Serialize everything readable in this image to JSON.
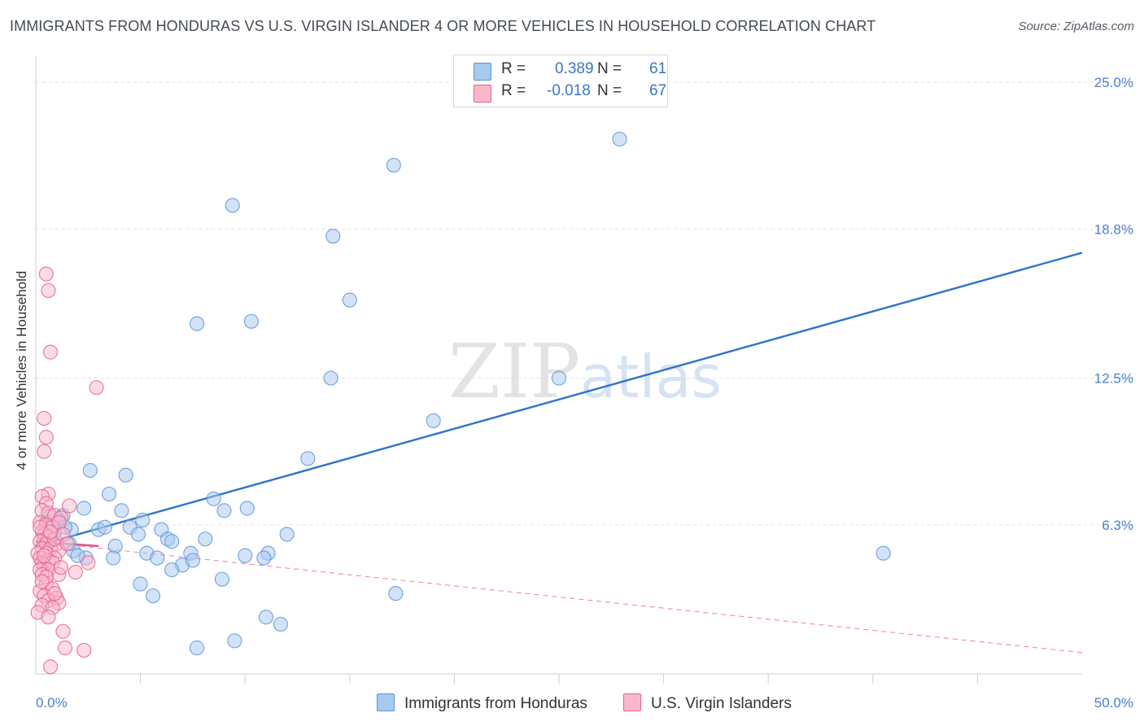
{
  "title": "IMMIGRANTS FROM HONDURAS VS U.S. VIRGIN ISLANDER 4 OR MORE VEHICLES IN HOUSEHOLD CORRELATION CHART",
  "source": "Source: ZipAtlas.com",
  "watermark": {
    "zip": "ZIP",
    "atlas": "atlas"
  },
  "legend": {
    "r_label": "R =",
    "n_label": "N =",
    "rows": [
      {
        "r": "0.389",
        "n": "61",
        "color": "#a8c8f0"
      },
      {
        "r": "-0.018",
        "n": "67",
        "color": "#f8b8cc"
      }
    ]
  },
  "chart_data": {
    "type": "scatter",
    "ylabel": "4 or more Vehicles in Household",
    "xlim": [
      0,
      50
    ],
    "ylim": [
      0,
      25.9
    ],
    "x_tick_labels": [
      {
        "v": 0,
        "label": "0.0%"
      },
      {
        "v": 50,
        "label": "50.0%"
      }
    ],
    "y_tick_labels": [
      {
        "v": 6.3,
        "label": "6.3%"
      },
      {
        "v": 12.5,
        "label": "12.5%"
      },
      {
        "v": 18.8,
        "label": "18.8%"
      },
      {
        "v": 25.0,
        "label": "25.0%"
      }
    ],
    "series": [
      {
        "name": "Immigrants from Honduras",
        "color": "#5b93d8",
        "fill": "#a8c8f0",
        "trend": {
          "x": [
            0.0,
            50.0
          ],
          "y": [
            5.4,
            17.8
          ],
          "style": "solid"
        },
        "points": [
          [
            27.9,
            22.6
          ],
          [
            17.1,
            21.5
          ],
          [
            9.4,
            19.8
          ],
          [
            14.2,
            18.5
          ],
          [
            15.0,
            15.8
          ],
          [
            7.7,
            14.8
          ],
          [
            10.3,
            14.9
          ],
          [
            14.1,
            12.5
          ],
          [
            25.0,
            12.5
          ],
          [
            19.0,
            10.7
          ],
          [
            13.0,
            9.1
          ],
          [
            2.6,
            8.6
          ],
          [
            4.3,
            8.4
          ],
          [
            3.5,
            7.6
          ],
          [
            8.5,
            7.4
          ],
          [
            10.1,
            7.0
          ],
          [
            4.1,
            6.9
          ],
          [
            9.0,
            6.9
          ],
          [
            2.3,
            7.0
          ],
          [
            1.3,
            6.7
          ],
          [
            0.5,
            6.4
          ],
          [
            1.1,
            6.5
          ],
          [
            1.7,
            6.1
          ],
          [
            3.0,
            6.1
          ],
          [
            3.3,
            6.2
          ],
          [
            4.5,
            6.2
          ],
          [
            5.1,
            6.5
          ],
          [
            4.9,
            5.9
          ],
          [
            6.0,
            6.1
          ],
          [
            6.3,
            5.7
          ],
          [
            6.5,
            5.6
          ],
          [
            8.1,
            5.7
          ],
          [
            12.0,
            5.9
          ],
          [
            1.6,
            5.5
          ],
          [
            3.8,
            5.4
          ],
          [
            1.8,
            5.2
          ],
          [
            5.3,
            5.1
          ],
          [
            7.4,
            5.1
          ],
          [
            10.0,
            5.0
          ],
          [
            11.1,
            5.1
          ],
          [
            2.4,
            4.9
          ],
          [
            3.7,
            4.9
          ],
          [
            5.8,
            4.9
          ],
          [
            7.0,
            4.6
          ],
          [
            7.5,
            4.8
          ],
          [
            10.9,
            4.9
          ],
          [
            6.5,
            4.4
          ],
          [
            40.5,
            5.1
          ],
          [
            5.0,
            3.8
          ],
          [
            8.9,
            4.0
          ],
          [
            5.6,
            3.3
          ],
          [
            17.2,
            3.4
          ],
          [
            11.0,
            2.4
          ],
          [
            11.7,
            2.1
          ],
          [
            9.5,
            1.4
          ],
          [
            7.7,
            1.1
          ],
          [
            0.4,
            5.7
          ],
          [
            0.9,
            6.0
          ],
          [
            1.4,
            6.2
          ],
          [
            0.7,
            6.7
          ],
          [
            2.0,
            5.0
          ]
        ]
      },
      {
        "name": "U.S. Virgin Islanders",
        "color": "#e8608c",
        "fill": "#f8b8cc",
        "trend": {
          "x": [
            0.0,
            3.0
          ],
          "y": [
            5.6,
            5.4
          ],
          "style": "solid"
        },
        "trend_extended": {
          "x": [
            0.0,
            50.0
          ],
          "y": [
            5.6,
            0.9
          ],
          "style": "dashed"
        },
        "points": [
          [
            0.5,
            16.9
          ],
          [
            0.6,
            16.2
          ],
          [
            0.7,
            13.6
          ],
          [
            2.9,
            12.1
          ],
          [
            0.4,
            10.8
          ],
          [
            0.5,
            10.0
          ],
          [
            0.4,
            9.4
          ],
          [
            0.6,
            7.6
          ],
          [
            0.3,
            7.5
          ],
          [
            0.5,
            7.2
          ],
          [
            1.6,
            7.1
          ],
          [
            0.3,
            6.9
          ],
          [
            0.6,
            6.8
          ],
          [
            0.9,
            6.7
          ],
          [
            1.2,
            6.6
          ],
          [
            0.2,
            6.4
          ],
          [
            0.5,
            6.3
          ],
          [
            0.8,
            6.2
          ],
          [
            1.1,
            6.4
          ],
          [
            0.3,
            6.0
          ],
          [
            0.4,
            5.9
          ],
          [
            0.6,
            5.8
          ],
          [
            0.2,
            5.6
          ],
          [
            0.5,
            5.5
          ],
          [
            1.0,
            5.5
          ],
          [
            0.3,
            5.3
          ],
          [
            0.7,
            5.3
          ],
          [
            0.1,
            5.1
          ],
          [
            0.5,
            5.1
          ],
          [
            1.1,
            5.2
          ],
          [
            0.2,
            4.9
          ],
          [
            0.6,
            4.8
          ],
          [
            0.9,
            4.9
          ],
          [
            0.3,
            4.7
          ],
          [
            0.4,
            4.6
          ],
          [
            0.8,
            4.7
          ],
          [
            2.5,
            4.7
          ],
          [
            0.2,
            4.4
          ],
          [
            0.6,
            4.4
          ],
          [
            1.1,
            4.2
          ],
          [
            1.9,
            4.3
          ],
          [
            0.3,
            4.2
          ],
          [
            0.5,
            3.8
          ],
          [
            0.8,
            3.6
          ],
          [
            0.2,
            3.5
          ],
          [
            0.4,
            3.3
          ],
          [
            1.0,
            3.2
          ],
          [
            0.6,
            3.1
          ],
          [
            1.1,
            3.0
          ],
          [
            0.3,
            2.9
          ],
          [
            0.8,
            2.8
          ],
          [
            0.1,
            2.6
          ],
          [
            1.3,
            1.8
          ],
          [
            1.4,
            1.1
          ],
          [
            2.3,
            1.0
          ],
          [
            0.7,
            0.3
          ],
          [
            0.4,
            5.0
          ],
          [
            0.9,
            5.7
          ],
          [
            1.3,
            5.9
          ],
          [
            0.2,
            6.2
          ],
          [
            0.7,
            6.0
          ],
          [
            0.5,
            4.1
          ],
          [
            1.2,
            4.5
          ],
          [
            0.3,
            3.9
          ],
          [
            0.9,
            3.4
          ],
          [
            1.5,
            5.5
          ],
          [
            0.6,
            2.4
          ]
        ]
      }
    ]
  }
}
